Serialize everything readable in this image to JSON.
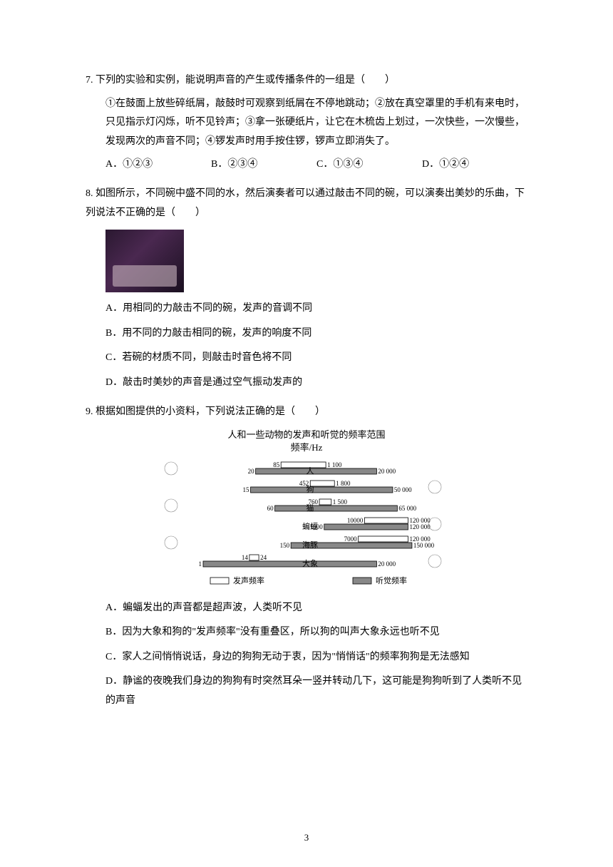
{
  "q7": {
    "number": "7.",
    "text": "下列的实验和实例，能说明声音的产生或传播条件的一组是（　　）",
    "body": "①在鼓面上放些碎纸屑，敲鼓时可观察到纸屑在不停地跳动；②放在真空罩里的手机有来电时，只见指示灯闪烁，听不见铃声；③拿一张硬纸片，让它在木梳齿上划过，一次快些，一次慢些，发现两次的声音不同；④锣发声时用手按住锣，锣声立即消失了。",
    "options": {
      "a": "A．①②③",
      "b": "B．②③④",
      "c": "C．①③④",
      "d": "D．①②④"
    }
  },
  "q8": {
    "number": "8.",
    "text": "如图所示，不同碗中盛不同的水，然后演奏者可以通过敲击不同的碗，可以演奏出美妙的乐曲，下列说法不正确的是（　　）",
    "options": {
      "a": "A．用相同的力敲击不同的碗，发声的音调不同",
      "b": "B．用不同的力敲击相同的碗，发声的响度不同",
      "c": "C．若碗的材质不同，则敲击时音色将不同",
      "d": "D．敲击时美妙的声音是通过空气振动发声的"
    }
  },
  "q9": {
    "number": "9.",
    "text": "根据如图提供的小资料，下列说法正确的是（　　）",
    "chart": {
      "title1": "人和一些动物的发声和听觉的频率范围",
      "title2": "频率/Hz",
      "legend_left": "发声频率",
      "legend_right": "听觉频率",
      "rows": [
        {
          "label": "人",
          "vocal": [
            85,
            1100
          ],
          "hearing": [
            20,
            20000
          ]
        },
        {
          "label": "狗",
          "vocal": [
            452,
            1800
          ],
          "hearing": [
            15,
            50000
          ]
        },
        {
          "label": "猫",
          "vocal": [
            760,
            1500
          ],
          "hearing": [
            60,
            65000
          ]
        },
        {
          "label": "蝙蝠",
          "vocal": [
            10000,
            120000
          ],
          "hearing": [
            1000,
            120000
          ]
        },
        {
          "label": "海豚",
          "vocal": [
            7000,
            120000
          ],
          "hearing": [
            150,
            150000
          ]
        },
        {
          "label": "大象",
          "vocal": [
            14,
            24
          ],
          "hearing": [
            1,
            20000
          ]
        }
      ]
    },
    "options": {
      "a": "A．蝙蝠发出的声音都是超声波，人类听不见",
      "b": "B．因为大象和狗的\"发声频率\"没有重叠区，所以狗的叫声大象永远也听不见",
      "c": "C．家人之间悄悄说话，身边的狗狗无动于衷，因为\"悄悄话\"的频率狗狗是无法感知",
      "d": "D．静谧的夜晚我们身边的狗狗有时突然耳朵一竖并转动几下，这可能是狗狗听到了人类听不见的声音"
    }
  },
  "page_number": "3"
}
